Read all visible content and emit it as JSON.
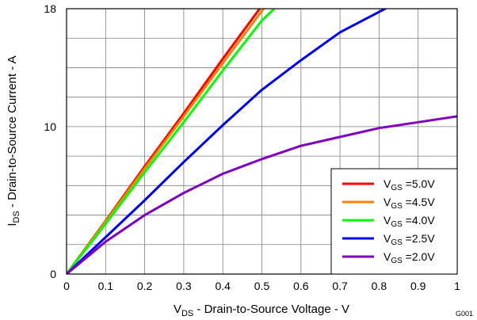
{
  "chart_data": {
    "type": "line",
    "title": "",
    "xlim": [
      0,
      1
    ],
    "ylim": [
      0,
      18
    ],
    "xticks": [
      0,
      0.1,
      0.2,
      0.3,
      0.4,
      0.5,
      0.6,
      0.7,
      0.8,
      0.9,
      1
    ],
    "x_tick_labels": [
      "0",
      "0.1",
      "0.2",
      "0.3",
      "0.4",
      "0.5",
      "0.6",
      "0.7",
      "0.8",
      "0.9",
      "1"
    ],
    "yticks": [
      0,
      10,
      18
    ],
    "y_tick_labels": [
      "0",
      "10",
      "18"
    ],
    "grid": true,
    "xlabel": {
      "main": "V",
      "sub": "DS",
      "rest": " - Drain-to-Source Voltage - V"
    },
    "ylabel": {
      "main": "I",
      "sub": "DS",
      "rest": " - Drain-to-Source Current - A"
    },
    "legend_position": "bottom-right",
    "figure_id": "G001",
    "series": [
      {
        "label_main": "V",
        "label_sub": "GS",
        "label_rest": " =5.0V",
        "color": "#ff0000",
        "x": [
          0,
          0.1,
          0.2,
          0.3,
          0.4,
          0.5
        ],
        "y": [
          0,
          3.6,
          7.3,
          10.9,
          14.6,
          18.2
        ]
      },
      {
        "label_main": "V",
        "label_sub": "GS",
        "label_rest": " =4.5V",
        "color": "#ff8000",
        "x": [
          0,
          0.1,
          0.2,
          0.3,
          0.4,
          0.51
        ],
        "y": [
          0,
          3.55,
          7.15,
          10.7,
          14.3,
          18.2
        ]
      },
      {
        "label_main": "V",
        "label_sub": "GS",
        "label_rest": " =4.0V",
        "color": "#00ff00",
        "x": [
          0,
          0.1,
          0.2,
          0.3,
          0.4,
          0.5,
          0.54
        ],
        "y": [
          0,
          3.4,
          6.9,
          10.3,
          13.8,
          17.2,
          18.2
        ]
      },
      {
        "label_main": "V",
        "label_sub": "GS",
        "label_rest": " =2.5V",
        "color": "#0000ff",
        "x": [
          0,
          0.1,
          0.2,
          0.3,
          0.4,
          0.5,
          0.6,
          0.7,
          0.83
        ],
        "y": [
          0,
          2.5,
          5.0,
          7.6,
          10.1,
          12.5,
          14.5,
          16.4,
          18.2
        ]
      },
      {
        "label_main": "V",
        "label_sub": "GS",
        "label_rest": " =2.0V",
        "color": "#8000c0",
        "x": [
          0,
          0.1,
          0.2,
          0.3,
          0.4,
          0.5,
          0.6,
          0.7,
          0.8,
          0.9,
          1
        ],
        "y": [
          0,
          2.2,
          4.0,
          5.5,
          6.8,
          7.8,
          8.7,
          9.3,
          9.9,
          10.3,
          10.7
        ]
      }
    ]
  }
}
